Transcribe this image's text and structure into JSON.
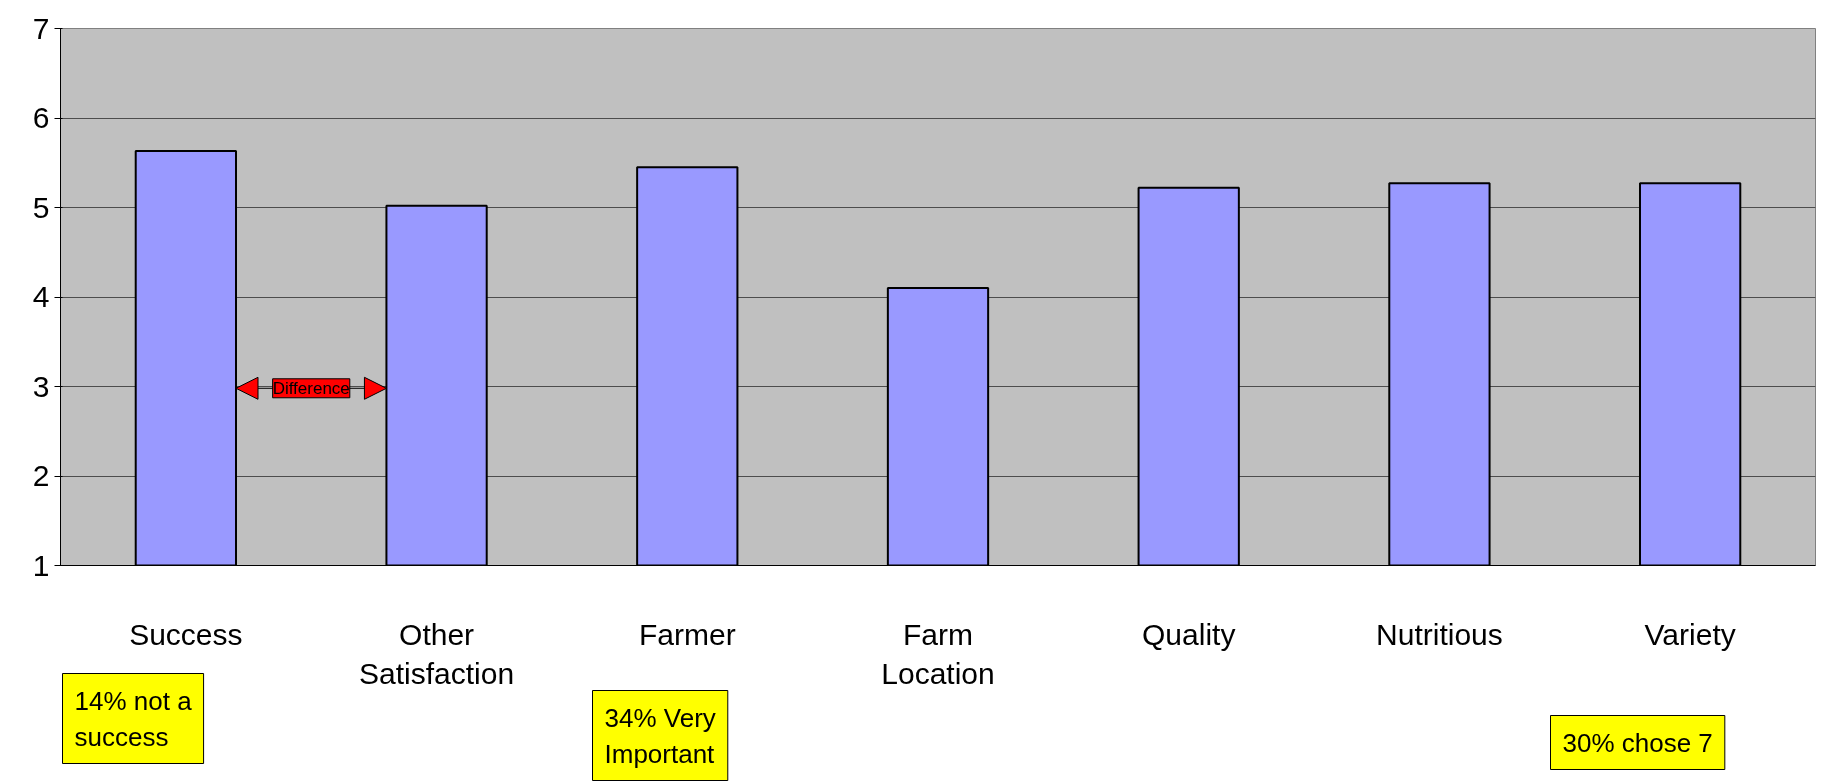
{
  "chart_data": {
    "type": "bar",
    "categories": [
      "Success",
      "Other Satisfaction",
      "Farmer",
      "Farm Location",
      "Quality",
      "Nutritious",
      "Variety"
    ],
    "values": [
      5.63,
      5.02,
      5.45,
      4.1,
      5.22,
      5.27,
      5.27
    ],
    "color": "#9999ff",
    "ylim": [
      1,
      7
    ],
    "yticks": [
      1,
      2,
      3,
      4,
      5,
      6,
      7
    ],
    "grid": "y",
    "annotations": [
      "Difference",
      "14% not a success",
      "34% Very Important",
      "30% chose 7"
    ]
  }
}
